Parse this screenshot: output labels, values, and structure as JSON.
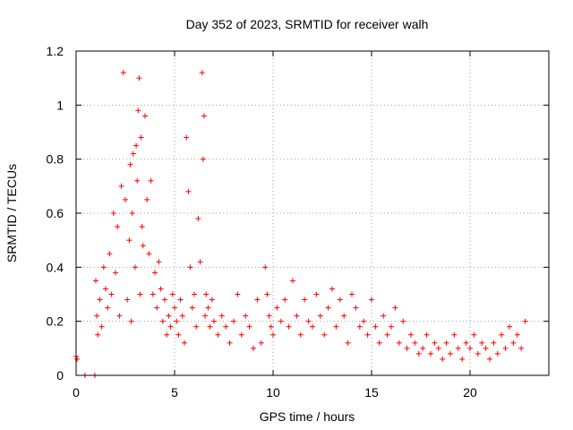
{
  "chart_data": {
    "type": "scatter",
    "title": "Day 352 of 2023, SRMTID for receiver walh",
    "xlabel": "GPS time / hours",
    "ylabel": "SRMTID / TECUs",
    "xlim": [
      0,
      24
    ],
    "ylim": [
      0,
      1.2
    ],
    "x_ticks": [
      0,
      5,
      10,
      15,
      20
    ],
    "y_ticks": [
      0,
      0.2,
      0.4,
      0.6,
      0.8,
      1.0,
      1.2
    ],
    "x_tick_labels": [
      "0",
      "5",
      "10",
      "15",
      "20"
    ],
    "y_tick_labels": [
      "0",
      "0.2",
      "0.4",
      "0.6",
      "0.8",
      "1",
      "1.2"
    ],
    "grid": true,
    "marker": "plus",
    "color": "#ff0000",
    "series": [
      {
        "name": "SRMTID",
        "x": [
          0.0,
          0.05,
          0.45,
          0.95,
          1.0,
          1.05,
          1.1,
          1.2,
          1.3,
          1.4,
          1.5,
          1.6,
          1.7,
          1.8,
          1.9,
          2.0,
          2.1,
          2.2,
          2.3,
          2.4,
          2.5,
          2.6,
          2.7,
          2.75,
          2.8,
          2.85,
          2.9,
          3.0,
          3.05,
          3.1,
          3.15,
          3.2,
          3.25,
          3.3,
          3.35,
          3.4,
          3.5,
          3.6,
          3.7,
          3.8,
          3.9,
          4.0,
          4.1,
          4.2,
          4.3,
          4.4,
          4.5,
          4.6,
          4.7,
          4.8,
          4.9,
          5.0,
          5.1,
          5.2,
          5.3,
          5.4,
          5.5,
          5.6,
          5.7,
          5.8,
          5.9,
          6.0,
          6.1,
          6.2,
          6.3,
          6.4,
          6.45,
          6.5,
          6.55,
          6.6,
          6.7,
          6.8,
          6.9,
          7.0,
          7.2,
          7.4,
          7.6,
          7.8,
          8.0,
          8.2,
          8.4,
          8.6,
          8.8,
          9.0,
          9.2,
          9.4,
          9.6,
          9.7,
          9.8,
          9.9,
          10.0,
          10.2,
          10.4,
          10.6,
          10.8,
          11.0,
          11.2,
          11.4,
          11.6,
          11.8,
          12.0,
          12.2,
          12.4,
          12.6,
          12.8,
          13.0,
          13.2,
          13.4,
          13.6,
          13.8,
          14.0,
          14.2,
          14.4,
          14.6,
          14.8,
          15.0,
          15.2,
          15.4,
          15.6,
          15.8,
          16.0,
          16.2,
          16.4,
          16.6,
          16.8,
          17.0,
          17.2,
          17.4,
          17.6,
          17.8,
          18.0,
          18.2,
          18.4,
          18.6,
          18.8,
          19.0,
          19.2,
          19.4,
          19.6,
          19.8,
          20.0,
          20.2,
          20.4,
          20.6,
          20.8,
          21.0,
          21.2,
          21.4,
          21.6,
          21.8,
          22.0,
          22.2,
          22.4,
          22.6,
          22.8
        ],
        "y": [
          0.07,
          0.06,
          0.0,
          0.0,
          0.35,
          0.22,
          0.15,
          0.28,
          0.18,
          0.4,
          0.32,
          0.25,
          0.45,
          0.3,
          0.6,
          0.38,
          0.55,
          0.22,
          0.7,
          1.12,
          0.65,
          0.28,
          0.5,
          0.78,
          0.2,
          0.6,
          0.82,
          0.4,
          0.85,
          0.72,
          0.98,
          1.1,
          0.3,
          0.88,
          0.55,
          0.48,
          0.96,
          0.65,
          0.45,
          0.72,
          0.3,
          0.38,
          0.25,
          0.42,
          0.32,
          0.2,
          0.28,
          0.15,
          0.22,
          0.18,
          0.3,
          0.25,
          0.2,
          0.15,
          0.28,
          0.22,
          0.12,
          0.88,
          0.68,
          0.4,
          0.25,
          0.3,
          0.18,
          0.58,
          0.42,
          1.12,
          0.8,
          0.96,
          0.22,
          0.3,
          0.25,
          0.18,
          0.28,
          0.2,
          0.15,
          0.22,
          0.18,
          0.12,
          0.2,
          0.3,
          0.15,
          0.22,
          0.18,
          0.1,
          0.28,
          0.12,
          0.4,
          0.3,
          0.22,
          0.18,
          0.15,
          0.25,
          0.2,
          0.28,
          0.18,
          0.35,
          0.22,
          0.15,
          0.28,
          0.2,
          0.18,
          0.3,
          0.22,
          0.15,
          0.25,
          0.32,
          0.18,
          0.28,
          0.22,
          0.12,
          0.3,
          0.25,
          0.18,
          0.2,
          0.15,
          0.28,
          0.18,
          0.12,
          0.22,
          0.15,
          0.18,
          0.25,
          0.12,
          0.2,
          0.1,
          0.15,
          0.12,
          0.08,
          0.1,
          0.15,
          0.08,
          0.12,
          0.1,
          0.06,
          0.12,
          0.08,
          0.15,
          0.1,
          0.06,
          0.12,
          0.1,
          0.15,
          0.08,
          0.12,
          0.1,
          0.06,
          0.12,
          0.08,
          0.15,
          0.1,
          0.18,
          0.12,
          0.15,
          0.1,
          0.2
        ]
      }
    ]
  }
}
